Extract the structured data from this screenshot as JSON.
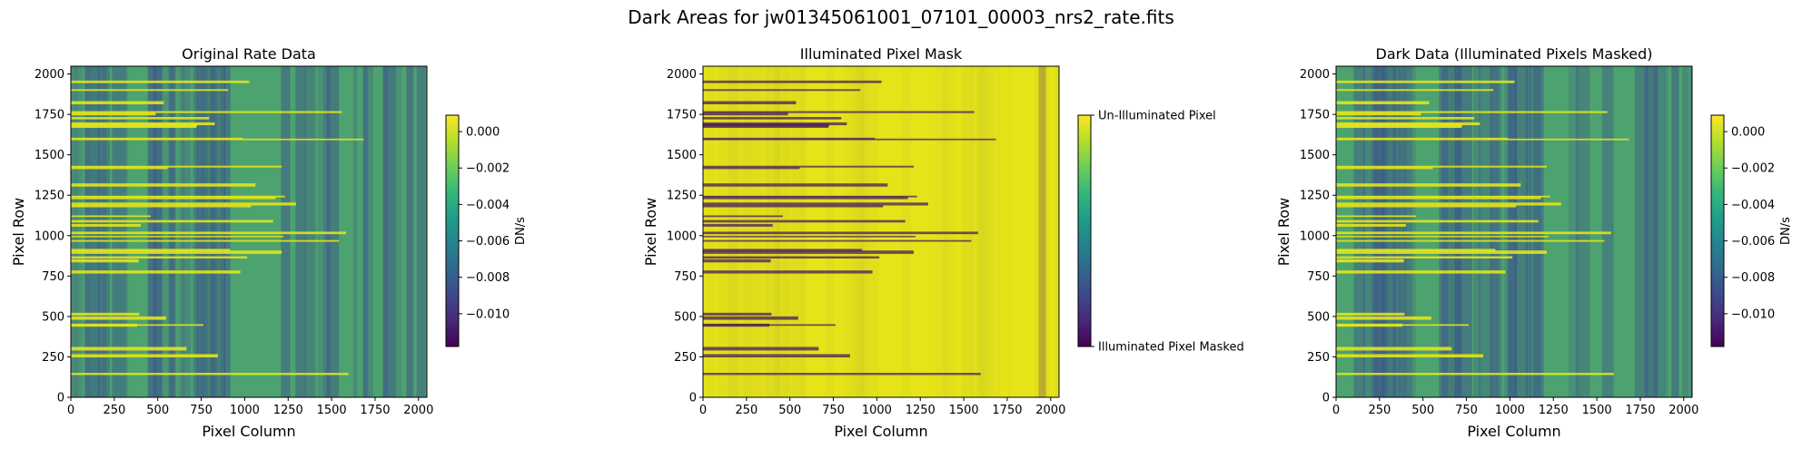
{
  "figure_title": "Dark Areas for jw01345061001_07101_00003_nrs2_rate.fits",
  "colors": {
    "viridis": [
      "#440154",
      "#482878",
      "#3e4989",
      "#31688e",
      "#26828e",
      "#1f9e89",
      "#35b779",
      "#6ece58",
      "#b5de2b",
      "#fde725"
    ],
    "dark_blue": "#3b528b",
    "green": "#4da36f",
    "yellow": "#e4e419",
    "purple": "#4a1a63"
  },
  "chart_data": [
    {
      "type": "heatmap",
      "id": "original",
      "title": "Original Rate Data",
      "xlabel": "Pixel Column",
      "ylabel": "Pixel Row",
      "xlim": [
        0,
        2048
      ],
      "ylim": [
        0,
        2048
      ],
      "xticks": [
        0,
        250,
        500,
        750,
        1000,
        1250,
        1500,
        1750,
        2000
      ],
      "yticks": [
        0,
        250,
        500,
        750,
        1000,
        1250,
        1500,
        1750,
        2000
      ],
      "colorbar": {
        "label": "DN/s",
        "range": [
          -0.0118,
          0.0009
        ],
        "ticks": [
          0.0,
          -0.002,
          -0.004,
          -0.006,
          -0.008,
          -0.01
        ],
        "tick_labels": [
          "0.000",
          "−0.002",
          "−0.004",
          "−0.006",
          "−0.008",
          "−0.010"
        ]
      }
    },
    {
      "type": "heatmap",
      "id": "mask",
      "title": "Illuminated Pixel Mask",
      "xlabel": "Pixel Column",
      "ylabel": "Pixel Row",
      "xlim": [
        0,
        2048
      ],
      "ylim": [
        0,
        2048
      ],
      "xticks": [
        0,
        250,
        500,
        750,
        1000,
        1250,
        1500,
        1750,
        2000
      ],
      "yticks": [
        0,
        250,
        500,
        750,
        1000,
        1250,
        1500,
        1750,
        2000
      ],
      "colorbar": {
        "label": "",
        "range": [
          0,
          1
        ],
        "ticks": [
          1,
          0
        ],
        "tick_labels": [
          "Un-Illuminated Pixel",
          "Illuminated Pixel Masked"
        ]
      }
    },
    {
      "type": "heatmap",
      "id": "dark",
      "title": "Dark Data (Illuminated Pixels Masked)",
      "xlabel": "Pixel Column",
      "ylabel": "Pixel Row",
      "xlim": [
        0,
        2048
      ],
      "ylim": [
        0,
        2048
      ],
      "xticks": [
        0,
        250,
        500,
        750,
        1000,
        1250,
        1500,
        1750,
        2000
      ],
      "yticks": [
        0,
        250,
        500,
        750,
        1000,
        1250,
        1500,
        1750,
        2000
      ],
      "colorbar": {
        "label": "DN/s",
        "range": [
          -0.0118,
          0.0009
        ],
        "ticks": [
          0.0,
          -0.002,
          -0.004,
          -0.006,
          -0.008,
          -0.01
        ],
        "tick_labels": [
          "0.000",
          "−0.002",
          "−0.004",
          "−0.006",
          "−0.008",
          "−0.010"
        ]
      }
    }
  ]
}
